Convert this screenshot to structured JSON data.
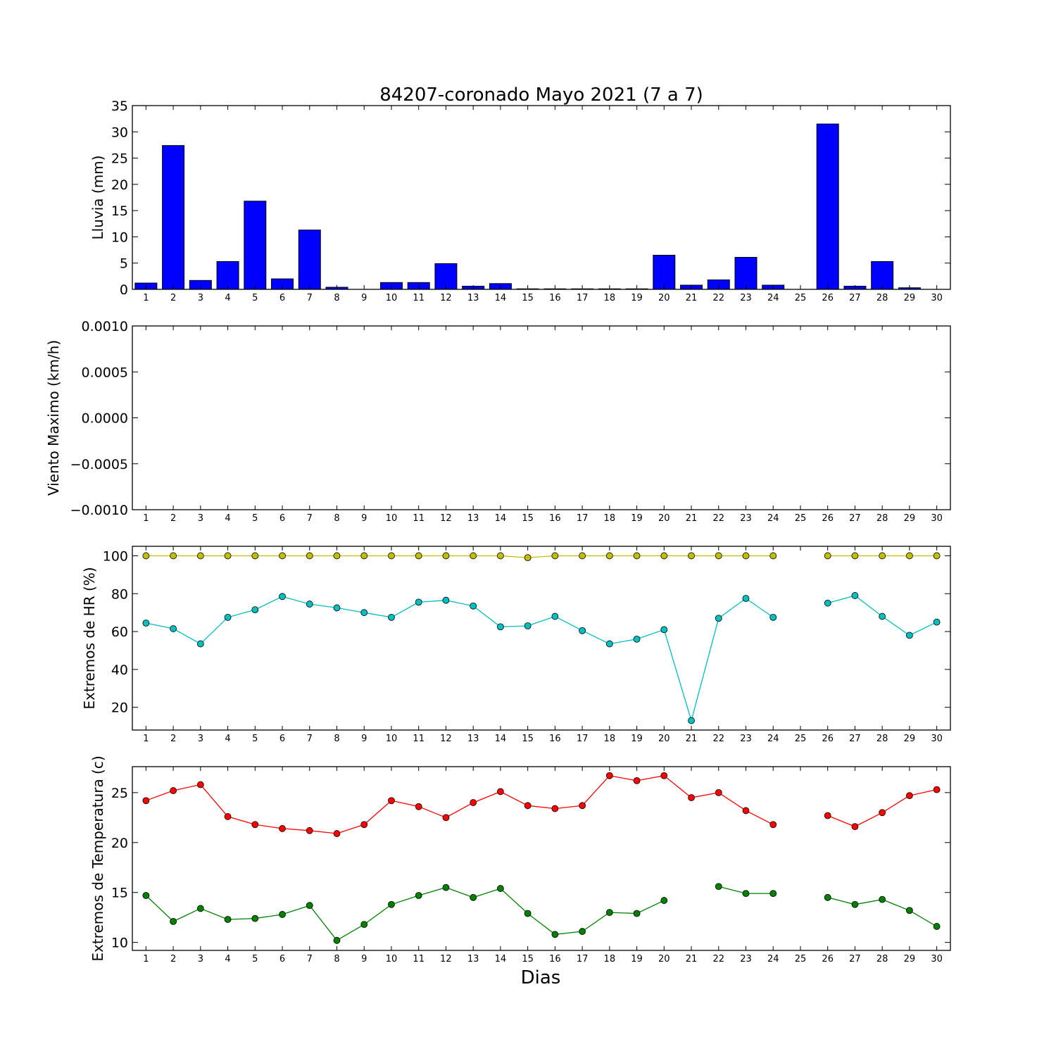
{
  "title": "84207-coronado Mayo 2021  (7 a 7)",
  "xlabel": "Dias",
  "days": [
    1,
    2,
    3,
    4,
    5,
    6,
    7,
    8,
    9,
    10,
    11,
    12,
    13,
    14,
    15,
    16,
    17,
    18,
    19,
    20,
    21,
    22,
    23,
    24,
    25,
    26,
    27,
    28,
    29,
    30
  ],
  "chart_data": [
    {
      "type": "bar",
      "ylabel": "Lluvia (mm)",
      "ylim": [
        0,
        35
      ],
      "yticks": [
        0,
        5,
        10,
        15,
        20,
        25,
        30,
        35
      ],
      "ytick_labels": [
        "0",
        "5",
        "10",
        "15",
        "20",
        "25",
        "30",
        "35"
      ],
      "categories": [
        1,
        2,
        3,
        4,
        5,
        6,
        7,
        8,
        9,
        10,
        11,
        12,
        13,
        14,
        15,
        16,
        17,
        18,
        19,
        20,
        21,
        22,
        23,
        24,
        25,
        26,
        27,
        28,
        29,
        30
      ],
      "series": [
        {
          "color": "#0000ff",
          "values": [
            1.2,
            27.4,
            1.7,
            5.3,
            16.8,
            2.0,
            11.3,
            0.4,
            0.0,
            1.3,
            1.3,
            4.9,
            0.6,
            1.1,
            0.1,
            0.1,
            0.1,
            0.1,
            0.1,
            6.5,
            0.8,
            1.8,
            6.1,
            0.8,
            0.0,
            31.5,
            0.6,
            5.3,
            0.3,
            0.0
          ]
        }
      ]
    },
    {
      "type": "line",
      "ylabel": "Viento Maximo (km/h)",
      "ylim": [
        -0.001,
        0.001
      ],
      "yticks": [
        -0.001,
        -0.0005,
        0.0,
        0.0005,
        0.001
      ],
      "ytick_labels": [
        "−0.0010",
        "−0.0005",
        "0.0000",
        "0.0005",
        "0.0010"
      ],
      "x": [
        1,
        2,
        3,
        4,
        5,
        6,
        7,
        8,
        9,
        10,
        11,
        12,
        13,
        14,
        15,
        16,
        17,
        18,
        19,
        20,
        21,
        22,
        23,
        24,
        25,
        26,
        27,
        28,
        29,
        30
      ],
      "series": []
    },
    {
      "type": "line",
      "ylabel": "Extremos de HR (%)",
      "ylim": [
        8,
        105
      ],
      "yticks": [
        20,
        40,
        60,
        80,
        100
      ],
      "ytick_labels": [
        "20",
        "40",
        "60",
        "80",
        "100"
      ],
      "x": [
        1,
        2,
        3,
        4,
        5,
        6,
        7,
        8,
        9,
        10,
        11,
        12,
        13,
        14,
        15,
        16,
        17,
        18,
        19,
        20,
        21,
        22,
        23,
        24,
        25,
        26,
        27,
        28,
        29,
        30
      ],
      "series": [
        {
          "color": "#bfbf00",
          "values": [
            100,
            100,
            100,
            100,
            100,
            100,
            100,
            100,
            100,
            100,
            100,
            100,
            100,
            100,
            99,
            100,
            100,
            100,
            100,
            100,
            100,
            100,
            100,
            100,
            null,
            100,
            100,
            100,
            100,
            100
          ]
        },
        {
          "color": "#00bfbf",
          "values": [
            64.5,
            61.5,
            53.5,
            67.5,
            71.5,
            78.5,
            74.5,
            72.5,
            70,
            67.5,
            75.5,
            76.5,
            73.5,
            62.5,
            63,
            68,
            60.5,
            53.5,
            56,
            61,
            13,
            67,
            77.5,
            67.5,
            null,
            75,
            79,
            68,
            58,
            65
          ]
        }
      ]
    },
    {
      "type": "line",
      "ylabel": "Extremos de Temperatura (c)",
      "ylim": [
        9.2,
        27.6
      ],
      "yticks": [
        10,
        15,
        20,
        25
      ],
      "ytick_labels": [
        "10",
        "15",
        "20",
        "25"
      ],
      "x": [
        1,
        2,
        3,
        4,
        5,
        6,
        7,
        8,
        9,
        10,
        11,
        12,
        13,
        14,
        15,
        16,
        17,
        18,
        19,
        20,
        21,
        22,
        23,
        24,
        25,
        26,
        27,
        28,
        29,
        30
      ],
      "series": [
        {
          "color": "#ff0000",
          "values": [
            24.2,
            25.2,
            25.8,
            22.6,
            21.8,
            21.4,
            21.2,
            20.9,
            21.8,
            24.2,
            23.6,
            22.5,
            24.0,
            25.1,
            23.7,
            23.4,
            23.7,
            26.7,
            26.2,
            26.7,
            24.5,
            25.0,
            23.2,
            21.8,
            null,
            22.7,
            21.6,
            23.0,
            24.7,
            25.3
          ]
        },
        {
          "color": "#008000",
          "values": [
            14.7,
            12.1,
            13.4,
            12.3,
            12.4,
            12.8,
            13.7,
            10.2,
            11.8,
            13.8,
            14.7,
            15.5,
            14.5,
            15.4,
            12.9,
            10.8,
            11.1,
            13.0,
            12.9,
            14.2,
            null,
            15.6,
            14.9,
            14.9,
            null,
            14.5,
            13.8,
            14.3,
            13.2,
            11.6
          ]
        }
      ]
    }
  ]
}
